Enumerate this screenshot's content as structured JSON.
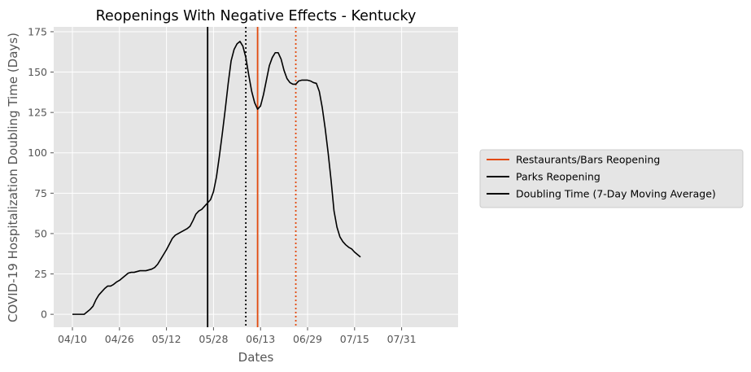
{
  "chart_data": {
    "type": "line",
    "title": "Reopenings With Negative Effects - Kentucky",
    "xlabel": "Dates",
    "ylabel": "COVID-19 Hospitalization Doubling Time (Days)",
    "x_tick_labels": [
      "04/10",
      "04/26",
      "05/12",
      "05/28",
      "06/13",
      "06/29",
      "07/15",
      "07/31"
    ],
    "y_ticks": [
      0,
      25,
      50,
      75,
      100,
      125,
      150,
      175
    ],
    "ylim": [
      -8,
      178
    ],
    "grid": true,
    "legend_position": "outside right",
    "series": [
      {
        "name": "Doubling Time (7-Day Moving Average)",
        "color": "#000000",
        "points": [
          [
            "04/10",
            0
          ],
          [
            "04/12",
            0
          ],
          [
            "04/14",
            0
          ],
          [
            "04/16",
            3
          ],
          [
            "04/17",
            5
          ],
          [
            "04/18",
            9
          ],
          [
            "04/19",
            12
          ],
          [
            "04/20",
            14
          ],
          [
            "04/21",
            16
          ],
          [
            "04/22",
            17.5
          ],
          [
            "04/23",
            17.5
          ],
          [
            "04/24",
            18.5
          ],
          [
            "04/25",
            20
          ],
          [
            "04/26",
            21
          ],
          [
            "04/27",
            22.5
          ],
          [
            "04/28",
            24
          ],
          [
            "04/29",
            25.5
          ],
          [
            "04/30",
            26
          ],
          [
            "05/01",
            26
          ],
          [
            "05/02",
            26.5
          ],
          [
            "05/03",
            27
          ],
          [
            "05/04",
            27
          ],
          [
            "05/05",
            27
          ],
          [
            "05/06",
            27.5
          ],
          [
            "05/07",
            28
          ],
          [
            "05/08",
            29
          ],
          [
            "05/09",
            31
          ],
          [
            "05/10",
            34
          ],
          [
            "05/11",
            37
          ],
          [
            "05/12",
            40
          ],
          [
            "05/13",
            43.5
          ],
          [
            "05/14",
            47
          ],
          [
            "05/15",
            49
          ],
          [
            "05/16",
            50
          ],
          [
            "05/17",
            51
          ],
          [
            "05/18",
            52
          ],
          [
            "05/19",
            53
          ],
          [
            "05/20",
            54.5
          ],
          [
            "05/21",
            58
          ],
          [
            "05/22",
            62
          ],
          [
            "05/23",
            64
          ],
          [
            "05/24",
            65
          ],
          [
            "05/25",
            67
          ],
          [
            "05/26",
            69
          ],
          [
            "05/27",
            71
          ],
          [
            "05/28",
            76
          ],
          [
            "05/29",
            85
          ],
          [
            "05/30",
            98
          ],
          [
            "05/31",
            112
          ],
          [
            "06/01",
            127
          ],
          [
            "06/02",
            143
          ],
          [
            "06/03",
            157
          ],
          [
            "06/04",
            164
          ],
          [
            "06/05",
            167.5
          ],
          [
            "06/06",
            169
          ],
          [
            "06/07",
            166
          ],
          [
            "06/08",
            159
          ],
          [
            "06/09",
            148
          ],
          [
            "06/10",
            138
          ],
          [
            "06/11",
            131
          ],
          [
            "06/12",
            127
          ],
          [
            "06/13",
            129
          ],
          [
            "06/14",
            136
          ],
          [
            "06/15",
            145
          ],
          [
            "06/16",
            154
          ],
          [
            "06/17",
            159
          ],
          [
            "06/18",
            162
          ],
          [
            "06/19",
            162
          ],
          [
            "06/20",
            158
          ],
          [
            "06/21",
            151
          ],
          [
            "06/22",
            146
          ],
          [
            "06/23",
            143.5
          ],
          [
            "06/24",
            142.5
          ],
          [
            "06/25",
            142.5
          ],
          [
            "06/26",
            144.5
          ],
          [
            "06/27",
            145
          ],
          [
            "06/28",
            145
          ],
          [
            "06/29",
            145
          ],
          [
            "06/30",
            144.5
          ],
          [
            "07/01",
            143.5
          ],
          [
            "07/02",
            143
          ],
          [
            "07/03",
            138
          ],
          [
            "07/04",
            128
          ],
          [
            "07/05",
            115
          ],
          [
            "07/06",
            100
          ],
          [
            "07/07",
            83
          ],
          [
            "07/08",
            64
          ],
          [
            "07/09",
            54
          ],
          [
            "07/10",
            48
          ],
          [
            "07/11",
            45
          ],
          [
            "07/12",
            43
          ],
          [
            "07/13",
            41.5
          ],
          [
            "07/14",
            40.5
          ],
          [
            "07/15",
            38.5
          ],
          [
            "07/16",
            37
          ],
          [
            "07/17",
            35.5
          ]
        ]
      }
    ],
    "vertical_lines": [
      {
        "name": "Parks Reopening",
        "date": "05/26",
        "color": "#000000",
        "style": "solid",
        "in_legend": true
      },
      {
        "name": "",
        "date": "06/08",
        "color": "#000000",
        "style": "dotted",
        "in_legend": false
      },
      {
        "name": "Restaurants/Bars Reopening",
        "date": "06/12",
        "color": "#E24A0E",
        "style": "solid",
        "in_legend": true
      },
      {
        "name": "",
        "date": "06/25",
        "color": "#E24A0E",
        "style": "dotted",
        "in_legend": false
      }
    ],
    "legend": [
      {
        "label": "Restaurants/Bars Reopening",
        "color": "#E24A0E"
      },
      {
        "label": "Parks Reopening",
        "color": "#000000"
      },
      {
        "label": "Doubling Time (7-Day Moving Average)",
        "color": "#000000"
      }
    ]
  }
}
